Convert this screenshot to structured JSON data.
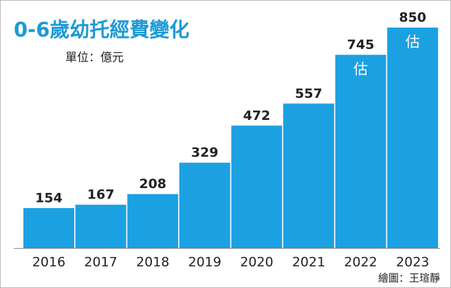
{
  "chart_data": {
    "type": "bar",
    "title": "0-6歲幼托經費變化",
    "subtitle": "單位：億元",
    "categories": [
      "2016",
      "2017",
      "2018",
      "2019",
      "2020",
      "2021",
      "2022",
      "2023"
    ],
    "values": [
      154,
      167,
      208,
      329,
      472,
      557,
      745,
      850
    ],
    "color": "#1ba1e2",
    "annotation": "估",
    "annotated": [
      false,
      false,
      false,
      false,
      false,
      false,
      true,
      true
    ],
    "credit": "繪圖：王瑄靜"
  }
}
